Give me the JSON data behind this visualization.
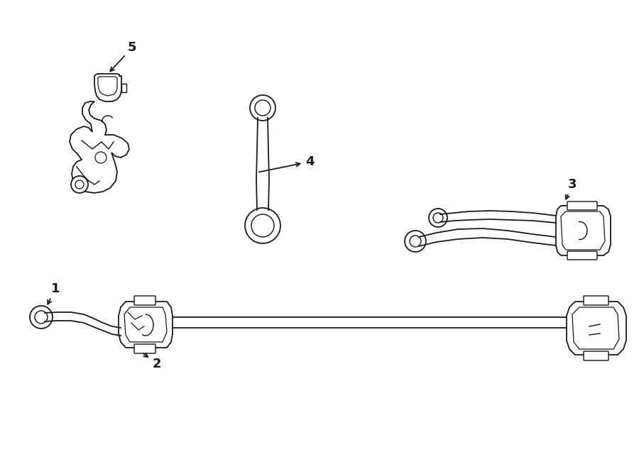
{
  "bg_color": "#ffffff",
  "line_color": "#1a1a1a",
  "figsize": [
    9.0,
    6.61
  ],
  "dpi": 100,
  "lw": 1.3
}
